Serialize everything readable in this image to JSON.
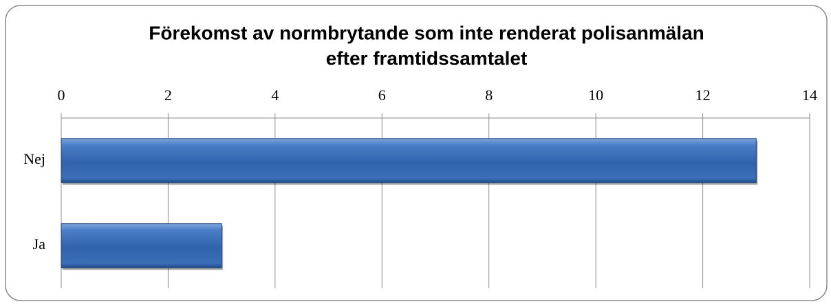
{
  "chart_data": {
    "type": "bar",
    "orientation": "horizontal",
    "title": [
      "Förekomst av normbrytande som inte renderat polisanmälan",
      "efter framtidssamtalet"
    ],
    "categories": [
      "Nej",
      "Ja"
    ],
    "values": [
      13,
      3
    ],
    "color": "#4f81bd",
    "xlim": [
      0,
      14
    ],
    "xticks": [
      0,
      2,
      4,
      6,
      8,
      10,
      12,
      14
    ],
    "grid": true,
    "axis_position": "top"
  }
}
